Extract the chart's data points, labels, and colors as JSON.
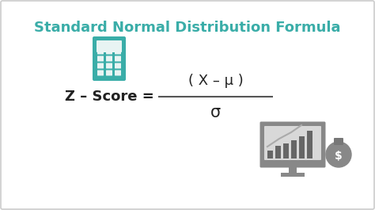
{
  "title": "Standard Normal Distribution Formula",
  "title_color": "#3aada8",
  "title_fontsize": 13,
  "bg_color": "#ffffff",
  "border_color": "#cccccc",
  "formula_label": "Z – Score =",
  "formula_numerator": "( X – μ )",
  "formula_denominator": "σ",
  "formula_color": "#222222",
  "formula_fontsize": 13,
  "fraction_line_color": "#555555",
  "calc_color": "#3aada8",
  "calc_screen_color": "#e8f4f3",
  "calc_btn_color": "#e8f4f3",
  "mon_body_color": "#888888",
  "mon_screen_color": "#cccccc",
  "mon_bar_color": "#666666",
  "mon_stand_color": "#555555",
  "bag_color": "#888888"
}
